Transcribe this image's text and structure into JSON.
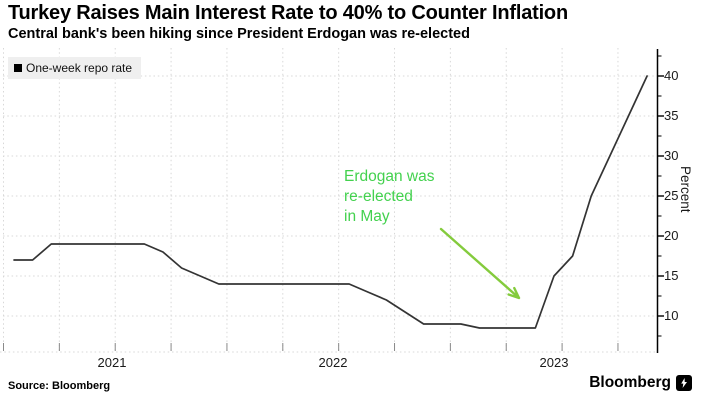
{
  "header": {
    "title": "Turkey Raises Main Interest Rate to 40% to Counter Inflation",
    "subtitle": "Central bank's been hiking since President Erdogan was re-elected"
  },
  "legend": {
    "label": "One-week repo rate"
  },
  "annotation": {
    "text": "Erdogan was\nre-elected\nin May"
  },
  "footer": {
    "source": "Source: Bloomberg",
    "brand": "Bloomberg"
  },
  "colors": {
    "line": "#343434",
    "grid": "#d8d8d8",
    "axis": "#000000",
    "annotation_text": "#43d14e",
    "arrow": "#84cb3d",
    "legend_bg": "#efefef",
    "quarter_tick": "#8a8a8a"
  },
  "chart_data": {
    "type": "line",
    "title": "Turkey Raises Main Interest Rate to 40% to Counter Inflation",
    "subtitle": "Central bank's been hiking since President Erdogan was re-elected",
    "xlabel": "",
    "ylabel": "Percent",
    "ylim": [
      5.5,
      43
    ],
    "grid": "dotted",
    "legend_position": "top-left",
    "y_ticks": [
      10,
      15,
      20,
      25,
      30,
      35,
      40
    ],
    "x_tick_labels": [
      "2021",
      "2022",
      "2023"
    ],
    "series": [
      {
        "name": "One-week repo rate",
        "x": [
          "2021-01",
          "2021-02",
          "2021-03",
          "2021-04",
          "2021-05",
          "2021-06",
          "2021-07",
          "2021-08",
          "2021-09",
          "2021-10",
          "2021-11",
          "2021-12",
          "2022-01",
          "2022-02",
          "2022-03",
          "2022-04",
          "2022-05",
          "2022-06",
          "2022-07",
          "2022-08",
          "2022-09",
          "2022-10",
          "2022-11",
          "2022-12",
          "2023-01",
          "2023-02",
          "2023-03",
          "2023-04",
          "2023-05",
          "2023-06",
          "2023-07",
          "2023-08",
          "2023-09",
          "2023-10",
          "2023-11"
        ],
        "values": [
          17,
          17,
          19,
          19,
          19,
          19,
          19,
          19,
          18,
          16,
          15,
          14,
          14,
          14,
          14,
          14,
          14,
          14,
          14,
          13,
          12,
          10.5,
          9,
          9,
          9,
          8.5,
          8.5,
          8.5,
          8.5,
          15,
          17.5,
          25,
          30,
          35,
          40
        ]
      }
    ],
    "annotations": [
      {
        "text": "Erdogan was re-elected in May",
        "arrow_points_to_x": "2023-05",
        "arrow_points_to_value": 8.5
      }
    ]
  }
}
